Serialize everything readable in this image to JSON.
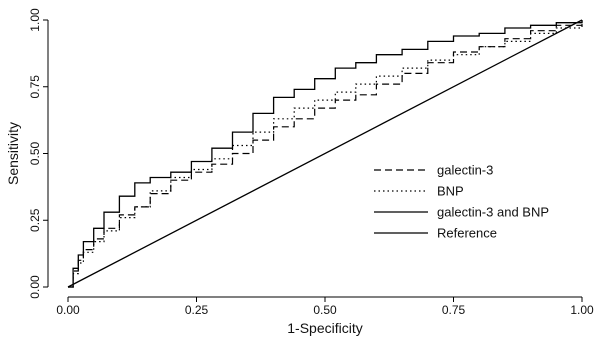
{
  "chart_data": {
    "type": "line",
    "title": "",
    "xlabel": "1-Specificity",
    "ylabel": "Sensitivity",
    "xlim": [
      0,
      1
    ],
    "ylim": [
      0,
      1
    ],
    "grid": false,
    "legend_position": "center-right",
    "xticks": [
      "0.00",
      "0.25",
      "0.50",
      "0.75",
      "1.00"
    ],
    "yticks": [
      "0.00",
      "0.25",
      "0.50",
      "0.75",
      "1.00"
    ],
    "series": [
      {
        "name": "galectin-3",
        "style": "dashed",
        "x": [
          0,
          0.01,
          0.02,
          0.03,
          0.05,
          0.07,
          0.1,
          0.13,
          0.16,
          0.2,
          0.24,
          0.28,
          0.32,
          0.36,
          0.4,
          0.44,
          0.48,
          0.52,
          0.56,
          0.6,
          0.65,
          0.7,
          0.75,
          0.8,
          0.85,
          0.9,
          0.95,
          1
        ],
        "y": [
          0,
          0.06,
          0.1,
          0.14,
          0.18,
          0.22,
          0.27,
          0.3,
          0.35,
          0.4,
          0.43,
          0.46,
          0.5,
          0.55,
          0.6,
          0.63,
          0.67,
          0.7,
          0.72,
          0.76,
          0.8,
          0.84,
          0.88,
          0.9,
          0.93,
          0.96,
          0.98,
          1
        ]
      },
      {
        "name": "BNP",
        "style": "dotted",
        "x": [
          0,
          0.01,
          0.02,
          0.03,
          0.05,
          0.07,
          0.1,
          0.13,
          0.16,
          0.2,
          0.24,
          0.28,
          0.32,
          0.36,
          0.4,
          0.44,
          0.48,
          0.52,
          0.56,
          0.6,
          0.65,
          0.7,
          0.75,
          0.8,
          0.85,
          0.9,
          0.95,
          1
        ],
        "y": [
          0,
          0.05,
          0.09,
          0.13,
          0.17,
          0.21,
          0.26,
          0.3,
          0.36,
          0.41,
          0.44,
          0.48,
          0.53,
          0.58,
          0.63,
          0.67,
          0.7,
          0.73,
          0.76,
          0.79,
          0.82,
          0.85,
          0.87,
          0.9,
          0.92,
          0.95,
          0.97,
          1
        ]
      },
      {
        "name": "galectin-3 and BNP",
        "style": "solid",
        "x": [
          0,
          0.01,
          0.02,
          0.03,
          0.05,
          0.07,
          0.1,
          0.13,
          0.16,
          0.2,
          0.24,
          0.28,
          0.32,
          0.36,
          0.4,
          0.44,
          0.48,
          0.52,
          0.56,
          0.6,
          0.65,
          0.7,
          0.75,
          0.8,
          0.85,
          0.9,
          0.95,
          1
        ],
        "y": [
          0,
          0.07,
          0.12,
          0.17,
          0.22,
          0.28,
          0.34,
          0.39,
          0.41,
          0.43,
          0.47,
          0.52,
          0.58,
          0.65,
          0.71,
          0.74,
          0.78,
          0.82,
          0.84,
          0.87,
          0.89,
          0.92,
          0.94,
          0.95,
          0.97,
          0.98,
          0.99,
          1
        ]
      },
      {
        "name": "Reference",
        "style": "solid",
        "x": [
          0,
          1
        ],
        "y": [
          0,
          1
        ]
      }
    ]
  }
}
